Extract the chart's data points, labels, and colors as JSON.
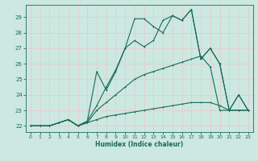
{
  "xlabel": "Humidex (Indice chaleur)",
  "bg_color": "#cce8e0",
  "line_color": "#1a6b5a",
  "grid_color": "#e8c8c8",
  "ylim": [
    21.6,
    29.8
  ],
  "xlim": [
    -0.5,
    23.5
  ],
  "yticks": [
    22,
    23,
    24,
    25,
    26,
    27,
    28,
    29
  ],
  "xticks": [
    0,
    1,
    2,
    3,
    4,
    5,
    6,
    7,
    8,
    9,
    10,
    11,
    12,
    13,
    14,
    15,
    16,
    17,
    18,
    19,
    20,
    21,
    22,
    23
  ],
  "lines": [
    {
      "x": [
        0,
        1,
        2,
        3,
        4,
        5,
        6,
        7,
        8,
        9,
        10,
        11,
        12,
        13,
        14,
        15,
        16,
        17,
        18,
        19,
        20,
        21,
        22,
        23
      ],
      "y": [
        22,
        22,
        22,
        22.2,
        22.4,
        22,
        22.2,
        22.4,
        22.6,
        22.7,
        22.8,
        22.9,
        23.0,
        23.1,
        23.2,
        23.3,
        23.4,
        23.5,
        23.5,
        23.5,
        23.3,
        23.0,
        23.0,
        23.0
      ]
    },
    {
      "x": [
        0,
        1,
        2,
        3,
        4,
        5,
        6,
        7,
        8,
        9,
        10,
        11,
        12,
        13,
        14,
        15,
        16,
        17,
        18,
        19,
        20,
        21,
        22,
        23
      ],
      "y": [
        22,
        22,
        22,
        22.2,
        22.4,
        22,
        22.2,
        23.0,
        23.5,
        24.0,
        24.5,
        25.0,
        25.3,
        25.5,
        25.7,
        25.9,
        26.1,
        26.3,
        26.5,
        25.8,
        23.0,
        23.0,
        24.0,
        23.0
      ]
    },
    {
      "x": [
        0,
        1,
        2,
        3,
        4,
        5,
        6,
        7,
        8,
        9,
        10,
        11,
        12,
        13,
        14,
        15,
        16,
        17,
        18,
        19,
        20,
        21,
        22,
        23
      ],
      "y": [
        22,
        22,
        22,
        22.2,
        22.4,
        22,
        22.3,
        25.5,
        24.3,
        25.5,
        27.0,
        28.9,
        28.9,
        28.4,
        28.0,
        29.1,
        28.8,
        29.5,
        26.3,
        27.0,
        26.0,
        23.0,
        23.0,
        23.0
      ]
    },
    {
      "x": [
        0,
        1,
        2,
        3,
        4,
        5,
        6,
        7,
        8,
        9,
        10,
        11,
        12,
        13,
        14,
        15,
        16,
        17,
        18,
        19,
        20,
        21,
        22,
        23
      ],
      "y": [
        22,
        22,
        22,
        22.2,
        22.4,
        22,
        22.3,
        23.3,
        24.5,
        25.6,
        27.0,
        27.5,
        27.1,
        27.5,
        28.8,
        29.1,
        28.8,
        29.5,
        26.3,
        27.0,
        26.0,
        23.0,
        24.0,
        23.0
      ]
    }
  ]
}
